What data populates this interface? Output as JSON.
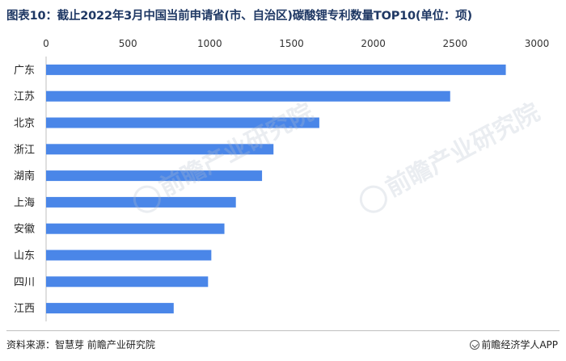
{
  "title": "图表10：截止2022年3月中国当前申请省(市、自治区)碳酸锂专利数量TOP10(单位：项)",
  "source": "资料来源：智慧芽 前瞻产业研究院",
  "brand": "前瞻经济学人APP",
  "watermark": "前瞻产业研究院",
  "colors": {
    "bar": "#4a86e8",
    "title": "#1f3864"
  },
  "chart_data": {
    "type": "bar",
    "orientation": "horizontal",
    "categories": [
      "广东",
      "江苏",
      "北京",
      "浙江",
      "湖南",
      "上海",
      "安徽",
      "山东",
      "四川",
      "江西"
    ],
    "values": [
      2810,
      2470,
      1670,
      1390,
      1320,
      1160,
      1090,
      1010,
      990,
      780
    ],
    "xlim": [
      0,
      3000
    ],
    "xticks": [
      "0",
      "500",
      "1000",
      "1500",
      "2000",
      "2500",
      "3000"
    ],
    "axis_position": "top",
    "grid": false,
    "legend": "none"
  }
}
